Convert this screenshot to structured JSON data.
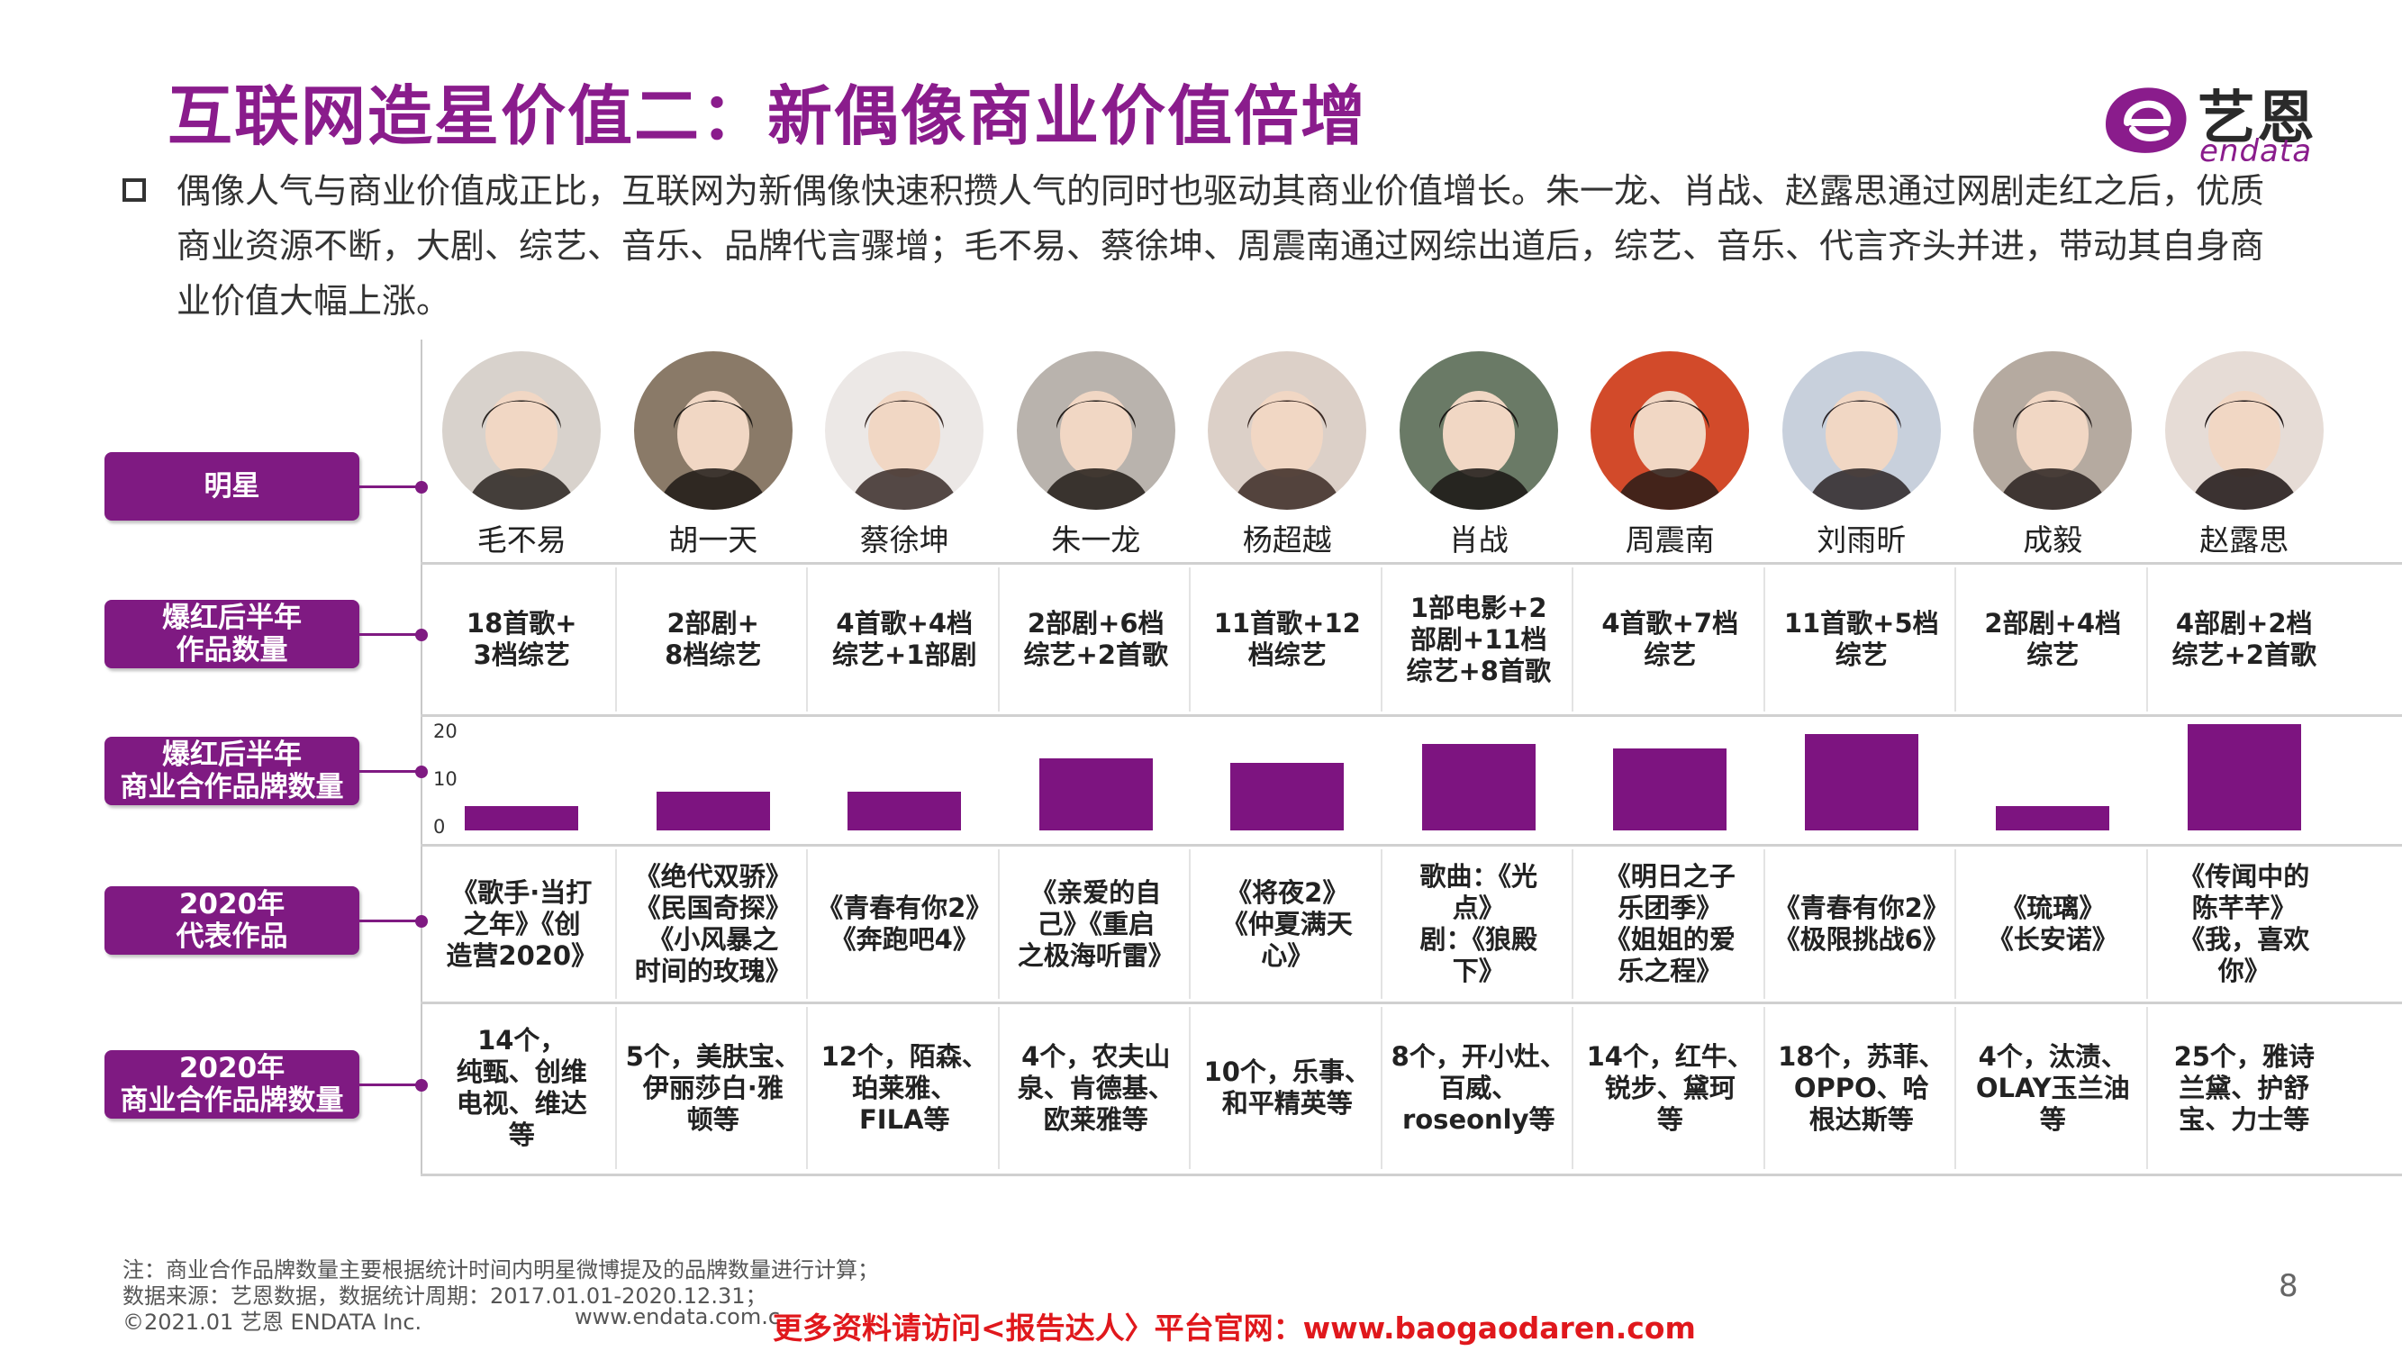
{
  "title": "互联网造星价值二：新偶像商业价值倍增",
  "logo": {
    "cn": "艺恩",
    "en": "endata"
  },
  "intro": "偶像人气与商业价值成正比，互联网为新偶像快速积攒人气的同时也驱动其商业价值增长。朱一龙、肖战、赵露思通过网剧走红之后，优质商业资源不断，大剧、综艺、音乐、品牌代言骤增；毛不易、蔡徐坤、周震南通过网综出道后，综艺、音乐、代言齐头并进，带动其自身商业价值大幅上涨。",
  "row_labels": {
    "star": "明星",
    "works": "爆红后半年\n作品数量",
    "brands_half": "爆红后半年\n商业合作品牌数量",
    "rep_2020": "2020年\n代表作品",
    "brands_2020": "2020年\n商业合作品牌数量"
  },
  "stars": [
    {
      "name": "毛不易",
      "works": "18首歌+\n3档综艺",
      "rep": "《歌手·当打\n之年》《创\n造营2020》",
      "brands": "14个，\n纯甄、创维\n电视、维达\n等"
    },
    {
      "name": "胡一天",
      "works": "2部剧+\n8档综艺",
      "rep": "《绝代双骄》\n《民国奇探》\n《小风暴之\n时间的玫瑰》",
      "brands": "5个，美肤宝、\n伊丽莎白·雅\n顿等"
    },
    {
      "name": "蔡徐坤",
      "works": "4首歌+4档\n综艺+1部剧",
      "rep": "《青春有你2》\n《奔跑吧4》",
      "brands": "12个，陌森、\n珀莱雅、\nFILA等"
    },
    {
      "name": "朱一龙",
      "works": "2部剧+6档\n综艺+2首歌",
      "rep": "《亲爱的自\n己》《重启\n之极海听雷》",
      "brands": "4个，农夫山\n泉、肯德基、\n欧莱雅等"
    },
    {
      "name": "杨超越",
      "works": "11首歌+12\n档综艺",
      "rep": "《将夜2》\n《仲夏满天\n心》",
      "brands": "10个，乐事、\n和平精英等"
    },
    {
      "name": "肖战",
      "works": "1部电影+2\n部剧+11档\n综艺+8首歌",
      "rep": "歌曲：《光\n点》\n剧：《狼殿\n下》",
      "brands": "8个，开小灶、\n百威、\nroseonly等"
    },
    {
      "name": "周震南",
      "works": "4首歌+7档\n综艺",
      "rep": "《明日之子\n乐团季》\n《姐姐的爱\n乐之程》",
      "brands": "14个，红牛、\n锐步、黛珂\n等"
    },
    {
      "name": "刘雨昕",
      "works": "11首歌+5档\n综艺",
      "rep": "《青春有你2》\n《极限挑战6》",
      "brands": "18个，苏菲、\nOPPO、哈\n根达斯等"
    },
    {
      "name": "成毅",
      "works": "2部剧+4档\n综艺",
      "rep": "《琉璃》\n《长安诺》",
      "brands": "4个，汰渍、\nOLAY玉兰油\n等"
    },
    {
      "name": "赵露思",
      "works": "4部剧+2档\n综艺+2首歌",
      "rep": "《传闻中的\n陈芊芊》\n《我，喜欢\n你》",
      "brands": "25个，雅诗\n兰黛、护舒\n宝、力士等"
    }
  ],
  "chart_data": {
    "type": "bar",
    "categories": [
      "毛不易",
      "胡一天",
      "蔡徐坤",
      "朱一龙",
      "杨超越",
      "肖战",
      "周震南",
      "刘雨昕",
      "成毅",
      "赵露思"
    ],
    "values": [
      5,
      8,
      8,
      15,
      14,
      18,
      17,
      20,
      5,
      22
    ],
    "ylim": [
      0,
      20
    ],
    "yticks": [
      "0",
      "10",
      "20"
    ],
    "grid": false
  },
  "notes": [
    "注：商业合作品牌数量主要根据统计时间内明星微博提及的品牌数量进行计算；",
    "数据来源：艺恩数据，数据统计周期：2017.01.01-2020.12.31；",
    "©2021.01 艺恩 ENDATA Inc."
  ],
  "website": "www.endata.com.c",
  "promo": "更多资料请访问<报告达人〉平台官网：www.baogaodaren.com",
  "page_number": "8",
  "colors": {
    "brand": "#7f1a82",
    "bar": "#7d1480",
    "promo": "#e0181c"
  }
}
